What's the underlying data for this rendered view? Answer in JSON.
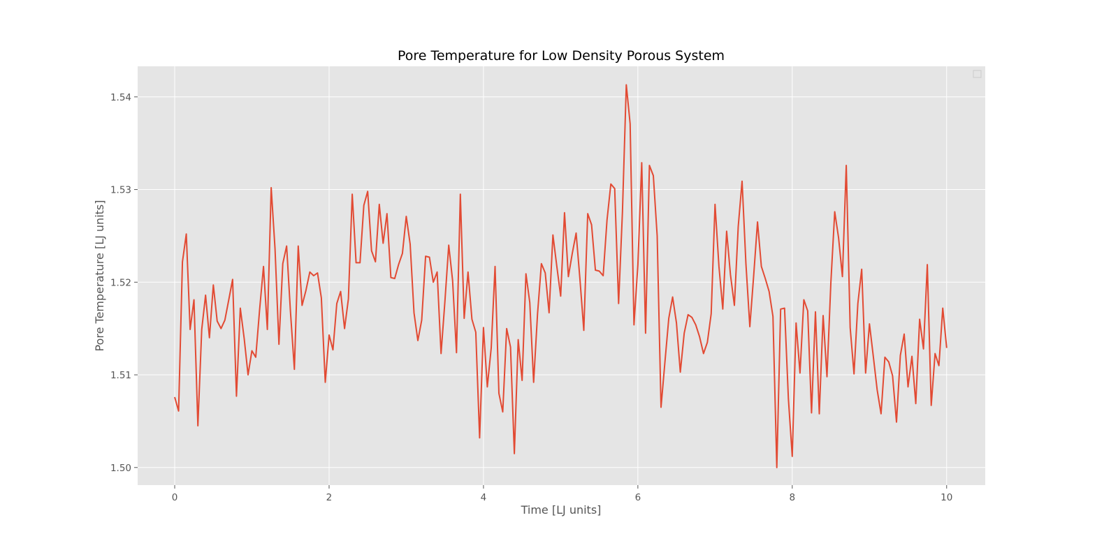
{
  "chart_data": {
    "type": "line",
    "title": "Pore Temperature for Low Density Porous System",
    "xlabel": "Time [LJ units]",
    "ylabel": "Pore Temperature [LJ units]",
    "xlim": [
      -0.48,
      10.5
    ],
    "ylim": [
      1.4981,
      1.5433
    ],
    "xticks": [
      0,
      2,
      4,
      6,
      8,
      10
    ],
    "yticks": [
      1.5,
      1.51,
      1.52,
      1.53,
      1.54
    ],
    "ytick_labels": [
      "1.50",
      "1.51",
      "1.52",
      "1.53",
      "1.54"
    ],
    "xtick_labels": [
      "0",
      "2",
      "4",
      "6",
      "8",
      "10"
    ],
    "grid": true,
    "legend": "top-right, empty",
    "colors": {
      "line": "#E24A33",
      "axes_bg": "#E5E5E5",
      "grid": "#FFFFFF"
    },
    "series": [
      {
        "x": [
          0.0,
          0.05,
          0.1,
          0.15,
          0.2,
          0.25,
          0.3,
          0.35,
          0.4,
          0.45,
          0.5,
          0.55,
          0.6,
          0.65,
          0.7,
          0.75,
          0.8,
          0.85,
          0.9,
          0.95,
          1.0,
          1.05,
          1.1,
          1.15,
          1.2,
          1.25,
          1.3,
          1.35,
          1.4,
          1.45,
          1.5,
          1.55,
          1.6,
          1.65,
          1.7,
          1.75,
          1.8,
          1.85,
          1.9,
          1.95,
          2.0,
          2.05,
          2.1,
          2.15,
          2.2,
          2.25,
          2.3,
          2.35,
          2.4,
          2.45,
          2.5,
          2.55,
          2.6,
          2.65,
          2.7,
          2.75,
          2.8,
          2.85,
          2.9,
          2.95,
          3.0,
          3.05,
          3.1,
          3.15,
          3.2,
          3.25,
          3.3,
          3.35,
          3.4,
          3.45,
          3.5,
          3.55,
          3.6,
          3.65,
          3.7,
          3.75,
          3.8,
          3.85,
          3.9,
          3.95,
          4.0,
          4.05,
          4.1,
          4.15,
          4.2,
          4.25,
          4.3,
          4.35,
          4.4,
          4.45,
          4.5,
          4.55,
          4.6,
          4.65,
          4.7,
          4.75,
          4.8,
          4.85,
          4.9,
          4.95,
          5.0,
          5.05,
          5.1,
          5.15,
          5.2,
          5.25,
          5.3,
          5.35,
          5.4,
          5.45,
          5.5,
          5.55,
          5.6,
          5.65,
          5.7,
          5.75,
          5.8,
          5.85,
          5.9,
          5.95,
          6.0,
          6.05,
          6.1,
          6.15,
          6.2,
          6.25,
          6.3,
          6.35,
          6.4,
          6.45,
          6.5,
          6.55,
          6.6,
          6.65,
          6.7,
          6.75,
          6.8,
          6.85,
          6.9,
          6.95,
          7.0,
          7.05,
          7.1,
          7.15,
          7.2,
          7.25,
          7.3,
          7.35,
          7.4,
          7.45,
          7.5,
          7.55,
          7.6,
          7.65,
          7.7,
          7.75,
          7.8,
          7.85,
          7.9,
          7.95,
          8.0,
          8.05,
          8.1,
          8.15,
          8.2,
          8.25,
          8.3,
          8.35,
          8.4,
          8.45,
          8.5,
          8.55,
          8.6,
          8.65,
          8.7,
          8.75,
          8.8,
          8.85,
          8.9,
          8.95,
          9.0,
          9.05,
          9.1,
          9.15,
          9.2,
          9.25,
          9.3,
          9.35,
          9.4,
          9.45,
          9.5,
          9.55,
          9.6,
          9.65,
          9.7,
          9.75,
          9.8,
          9.85,
          9.9,
          9.95,
          10.0
        ],
        "y": [
          1.5076,
          1.5061,
          1.5222,
          1.5252,
          1.5149,
          1.5181,
          1.5045,
          1.5149,
          1.5186,
          1.514,
          1.5197,
          1.5158,
          1.515,
          1.5159,
          1.5181,
          1.5203,
          1.5077,
          1.5172,
          1.5139,
          1.51,
          1.5126,
          1.5119,
          1.517,
          1.5217,
          1.5149,
          1.5302,
          1.5236,
          1.5133,
          1.522,
          1.5239,
          1.5168,
          1.5106,
          1.5239,
          1.5175,
          1.5191,
          1.5211,
          1.5207,
          1.521,
          1.5183,
          1.5092,
          1.5143,
          1.5127,
          1.5177,
          1.519,
          1.515,
          1.5182,
          1.5295,
          1.5221,
          1.5221,
          1.5283,
          1.5298,
          1.5234,
          1.5222,
          1.5284,
          1.5242,
          1.5274,
          1.5205,
          1.5204,
          1.5219,
          1.5231,
          1.5271,
          1.5241,
          1.5167,
          1.5137,
          1.5159,
          1.5228,
          1.5227,
          1.52,
          1.5211,
          1.5123,
          1.5179,
          1.524,
          1.5202,
          1.5124,
          1.5295,
          1.5161,
          1.5211,
          1.516,
          1.5146,
          1.5032,
          1.5151,
          1.5087,
          1.5129,
          1.5217,
          1.508,
          1.506,
          1.515,
          1.513,
          1.5015,
          1.5138,
          1.5094,
          1.5209,
          1.5178,
          1.5092,
          1.5166,
          1.522,
          1.521,
          1.5167,
          1.5251,
          1.5217,
          1.5185,
          1.5275,
          1.5206,
          1.5231,
          1.5253,
          1.5203,
          1.5148,
          1.5274,
          1.5262,
          1.5213,
          1.5212,
          1.5207,
          1.5267,
          1.5306,
          1.5301,
          1.5177,
          1.5276,
          1.5413,
          1.5371,
          1.5154,
          1.5219,
          1.5329,
          1.5145,
          1.5326,
          1.5315,
          1.525,
          1.5065,
          1.5113,
          1.5161,
          1.5184,
          1.5156,
          1.5103,
          1.5145,
          1.5165,
          1.5162,
          1.5154,
          1.5141,
          1.5123,
          1.5135,
          1.5166,
          1.5284,
          1.5217,
          1.5171,
          1.5255,
          1.5208,
          1.5175,
          1.526,
          1.5309,
          1.522,
          1.5152,
          1.5207,
          1.5265,
          1.5217,
          1.5204,
          1.519,
          1.5163,
          1.5,
          1.5171,
          1.5172,
          1.5074,
          1.5012,
          1.5156,
          1.5102,
          1.5181,
          1.5169,
          1.5059,
          1.5168,
          1.5058,
          1.5164,
          1.5098,
          1.52,
          1.5276,
          1.5248,
          1.5206,
          1.5326,
          1.5151,
          1.5101,
          1.5177,
          1.5214,
          1.5102,
          1.5155,
          1.512,
          1.5084,
          1.5058,
          1.5119,
          1.5114,
          1.5099,
          1.5049,
          1.5121,
          1.5144,
          1.5087,
          1.512,
          1.5069,
          1.516,
          1.5128,
          1.5219,
          1.5067,
          1.5123,
          1.511,
          1.5172,
          1.5129
        ]
      }
    ]
  }
}
